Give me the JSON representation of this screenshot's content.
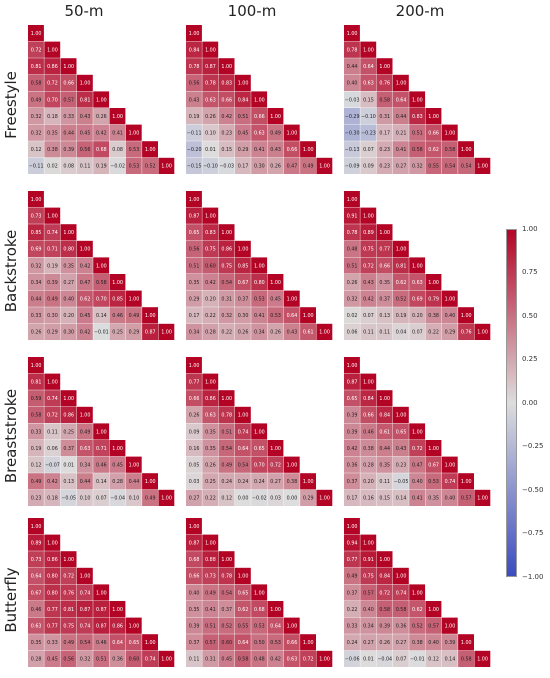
{
  "column_titles": [
    "50-m",
    "100-m",
    "200-m"
  ],
  "row_titles": [
    "Freestyle",
    "Backstroke",
    "Breaststroke",
    "Butterfly"
  ],
  "colorbar": {
    "ticks": [
      "1.00",
      "0.75",
      "0.50",
      "0.25",
      "0.00",
      "−0.25",
      "−0.50",
      "−0.75",
      "−1.00"
    ],
    "low_color": "#3b4cc0",
    "mid_color": "#dddddd",
    "high_color": "#b40426"
  },
  "chart_data": [
    {
      "type": "heatmap",
      "stroke": "Freestyle",
      "distance": "50-m",
      "matrix": [
        [
          1.0
        ],
        [
          0.72,
          1.0
        ],
        [
          0.81,
          0.86,
          1.0
        ],
        [
          0.58,
          0.72,
          0.66,
          1.0
        ],
        [
          0.49,
          0.7,
          0.57,
          0.81,
          1.0
        ],
        [
          0.32,
          0.18,
          0.33,
          0.43,
          0.26,
          1.0
        ],
        [
          0.32,
          0.35,
          0.44,
          0.45,
          0.42,
          0.41,
          1.0
        ],
        [
          0.12,
          0.38,
          0.39,
          0.56,
          0.68,
          0.08,
          0.53,
          1.0
        ],
        [
          -0.11,
          0.02,
          0.08,
          0.11,
          0.19,
          -0.02,
          0.53,
          0.52,
          1.0
        ]
      ]
    },
    {
      "type": "heatmap",
      "stroke": "Freestyle",
      "distance": "100-m",
      "matrix": [
        [
          1.0
        ],
        [
          0.84,
          1.0
        ],
        [
          0.78,
          0.87,
          1.0
        ],
        [
          0.56,
          0.78,
          0.83,
          1.0
        ],
        [
          0.43,
          0.63,
          0.66,
          0.84,
          1.0
        ],
        [
          0.19,
          0.26,
          0.42,
          0.51,
          0.66,
          1.0
        ],
        [
          -0.11,
          0.1,
          0.23,
          0.45,
          0.63,
          0.49,
          1.0
        ],
        [
          -0.2,
          0.01,
          0.15,
          0.29,
          0.41,
          0.43,
          0.66,
          1.0
        ],
        [
          -0.15,
          -0.1,
          -0.03,
          0.17,
          0.3,
          0.26,
          0.47,
          0.49,
          1.0
        ]
      ]
    },
    {
      "type": "heatmap",
      "stroke": "Freestyle",
      "distance": "200-m",
      "matrix": [
        [
          1.0
        ],
        [
          0.78,
          1.0
        ],
        [
          0.44,
          0.64,
          1.0
        ],
        [
          0.4,
          0.63,
          0.76,
          1.0
        ],
        [
          -0.03,
          0.15,
          0.58,
          0.64,
          1.0
        ],
        [
          -0.29,
          -0.1,
          0.31,
          0.44,
          0.83,
          1.0
        ],
        [
          -0.3,
          -0.23,
          0.17,
          0.21,
          0.51,
          0.66,
          1.0
        ],
        [
          -0.13,
          0.07,
          0.23,
          0.41,
          0.58,
          0.62,
          0.58,
          1.0
        ],
        [
          -0.09,
          0.09,
          0.23,
          0.27,
          0.32,
          0.55,
          0.54,
          0.54,
          1.0
        ]
      ]
    },
    {
      "type": "heatmap",
      "stroke": "Backstroke",
      "distance": "50-m",
      "matrix": [
        [
          1.0
        ],
        [
          0.73,
          1.0
        ],
        [
          0.85,
          0.74,
          1.0
        ],
        [
          0.69,
          0.71,
          0.8,
          1.0
        ],
        [
          0.32,
          0.19,
          0.35,
          0.42,
          1.0
        ],
        [
          0.34,
          0.39,
          0.27,
          0.47,
          0.58,
          1.0
        ],
        [
          0.44,
          0.49,
          0.4,
          0.62,
          0.7,
          0.85,
          1.0
        ],
        [
          0.33,
          0.3,
          0.2,
          0.45,
          0.14,
          0.46,
          0.49,
          1.0
        ],
        [
          0.26,
          0.29,
          0.3,
          0.42,
          -0.01,
          0.25,
          0.29,
          0.87,
          1.0
        ]
      ]
    },
    {
      "type": "heatmap",
      "stroke": "Backstroke",
      "distance": "100-m",
      "matrix": [
        [
          1.0
        ],
        [
          0.87,
          1.0
        ],
        [
          0.65,
          0.83,
          1.0
        ],
        [
          0.56,
          0.75,
          0.86,
          1.0
        ],
        [
          0.51,
          0.6,
          0.75,
          0.85,
          1.0
        ],
        [
          0.35,
          0.42,
          0.54,
          0.67,
          0.8,
          1.0
        ],
        [
          0.29,
          0.2,
          0.31,
          0.37,
          0.53,
          0.45,
          1.0
        ],
        [
          0.17,
          0.22,
          0.32,
          0.3,
          0.41,
          0.53,
          0.64,
          1.0
        ],
        [
          0.34,
          0.28,
          0.22,
          0.26,
          0.34,
          0.26,
          0.43,
          0.61,
          1.0
        ]
      ]
    },
    {
      "type": "heatmap",
      "stroke": "Backstroke",
      "distance": "200-m",
      "matrix": [
        [
          1.0
        ],
        [
          0.91,
          1.0
        ],
        [
          0.78,
          0.89,
          1.0
        ],
        [
          0.48,
          0.75,
          0.77,
          1.0
        ],
        [
          0.51,
          0.72,
          0.66,
          0.81,
          1.0
        ],
        [
          0.26,
          0.43,
          0.35,
          0.62,
          0.63,
          1.0
        ],
        [
          0.32,
          0.42,
          0.37,
          0.52,
          0.69,
          0.79,
          1.0
        ],
        [
          0.02,
          0.07,
          0.13,
          0.19,
          0.2,
          0.38,
          0.4,
          1.0
        ],
        [
          0.06,
          0.11,
          0.11,
          0.04,
          0.07,
          0.22,
          0.29,
          0.76,
          1.0
        ]
      ]
    },
    {
      "type": "heatmap",
      "stroke": "Breaststroke",
      "distance": "50-m",
      "matrix": [
        [
          1.0
        ],
        [
          0.81,
          1.0
        ],
        [
          0.59,
          0.74,
          1.0
        ],
        [
          0.58,
          0.72,
          0.86,
          1.0
        ],
        [
          0.33,
          0.11,
          0.25,
          0.49,
          1.0
        ],
        [
          0.19,
          0.06,
          0.37,
          0.63,
          0.71,
          1.0
        ],
        [
          0.12,
          -0.07,
          0.01,
          0.34,
          0.46,
          0.45,
          1.0
        ],
        [
          0.49,
          0.42,
          0.13,
          0.44,
          0.14,
          0.28,
          0.44,
          1.0
        ],
        [
          0.23,
          0.18,
          -0.05,
          0.1,
          0.07,
          -0.04,
          0.1,
          0.49,
          1.0
        ]
      ]
    },
    {
      "type": "heatmap",
      "stroke": "Breaststroke",
      "distance": "100-m",
      "matrix": [
        [
          1.0
        ],
        [
          0.77,
          1.0
        ],
        [
          0.66,
          0.86,
          1.0
        ],
        [
          0.26,
          0.63,
          0.78,
          1.0
        ],
        [
          0.09,
          0.35,
          0.51,
          0.74,
          1.0
        ],
        [
          0.16,
          0.35,
          0.54,
          0.64,
          0.65,
          1.0
        ],
        [
          0.05,
          0.26,
          0.49,
          0.54,
          0.7,
          0.72,
          1.0
        ],
        [
          0.03,
          0.25,
          0.24,
          0.24,
          0.24,
          0.27,
          0.38,
          1.0
        ],
        [
          0.27,
          0.22,
          0.12,
          0.0,
          -0.02,
          0.03,
          0.0,
          0.29,
          1.0
        ]
      ]
    },
    {
      "type": "heatmap",
      "stroke": "Breaststroke",
      "distance": "200-m",
      "matrix": [
        [
          1.0
        ],
        [
          0.87,
          1.0
        ],
        [
          0.65,
          0.84,
          1.0
        ],
        [
          0.39,
          0.66,
          0.84,
          1.0
        ],
        [
          0.39,
          0.46,
          0.61,
          0.65,
          1.0
        ],
        [
          0.42,
          0.38,
          0.44,
          0.43,
          0.72,
          1.0
        ],
        [
          0.36,
          0.28,
          0.35,
          0.23,
          0.47,
          0.67,
          1.0
        ],
        [
          0.37,
          0.2,
          0.11,
          -0.05,
          0.4,
          0.53,
          0.74,
          1.0
        ],
        [
          0.17,
          0.16,
          0.15,
          0.14,
          0.41,
          0.35,
          0.4,
          0.57,
          1.0
        ]
      ]
    },
    {
      "type": "heatmap",
      "stroke": "Butterfly",
      "distance": "50-m",
      "matrix": [
        [
          1.0
        ],
        [
          0.89,
          1.0
        ],
        [
          0.73,
          0.86,
          1.0
        ],
        [
          0.64,
          0.8,
          0.72,
          1.0
        ],
        [
          0.67,
          0.8,
          0.76,
          0.74,
          1.0
        ],
        [
          0.46,
          0.77,
          0.81,
          0.87,
          0.87,
          1.0
        ],
        [
          0.63,
          0.77,
          0.75,
          0.74,
          0.87,
          0.86,
          1.0
        ],
        [
          0.35,
          0.33,
          0.49,
          0.54,
          0.46,
          0.64,
          0.65,
          1.0
        ],
        [
          0.28,
          0.45,
          0.56,
          0.32,
          0.51,
          0.36,
          0.6,
          0.74,
          1.0
        ]
      ]
    },
    {
      "type": "heatmap",
      "stroke": "Butterfly",
      "distance": "100-m",
      "matrix": [
        [
          1.0
        ],
        [
          0.87,
          1.0
        ],
        [
          0.68,
          0.88,
          1.0
        ],
        [
          0.66,
          0.73,
          0.78,
          1.0
        ],
        [
          0.4,
          0.49,
          0.54,
          0.65,
          1.0
        ],
        [
          0.35,
          0.41,
          0.37,
          0.62,
          0.68,
          1.0
        ],
        [
          0.39,
          0.51,
          0.52,
          0.55,
          0.53,
          0.64,
          1.0
        ],
        [
          0.37,
          0.57,
          0.6,
          0.64,
          0.5,
          0.53,
          0.66,
          1.0
        ],
        [
          0.11,
          0.31,
          0.45,
          0.58,
          0.48,
          0.42,
          0.63,
          0.72,
          1.0
        ]
      ]
    },
    {
      "type": "heatmap",
      "stroke": "Butterfly",
      "distance": "200-m",
      "matrix": [
        [
          1.0
        ],
        [
          0.94,
          1.0
        ],
        [
          0.77,
          0.91,
          1.0
        ],
        [
          0.49,
          0.75,
          0.84,
          1.0
        ],
        [
          0.37,
          0.57,
          0.72,
          0.74,
          1.0
        ],
        [
          0.22,
          0.4,
          0.58,
          0.58,
          0.62,
          1.0
        ],
        [
          0.33,
          0.34,
          0.39,
          0.36,
          0.52,
          0.57,
          1.0
        ],
        [
          0.24,
          0.27,
          0.26,
          0.27,
          0.38,
          0.4,
          0.39,
          1.0
        ],
        [
          -0.06,
          0.01,
          -0.04,
          0.07,
          -0.01,
          0.12,
          0.14,
          0.58,
          1.0
        ]
      ]
    }
  ]
}
